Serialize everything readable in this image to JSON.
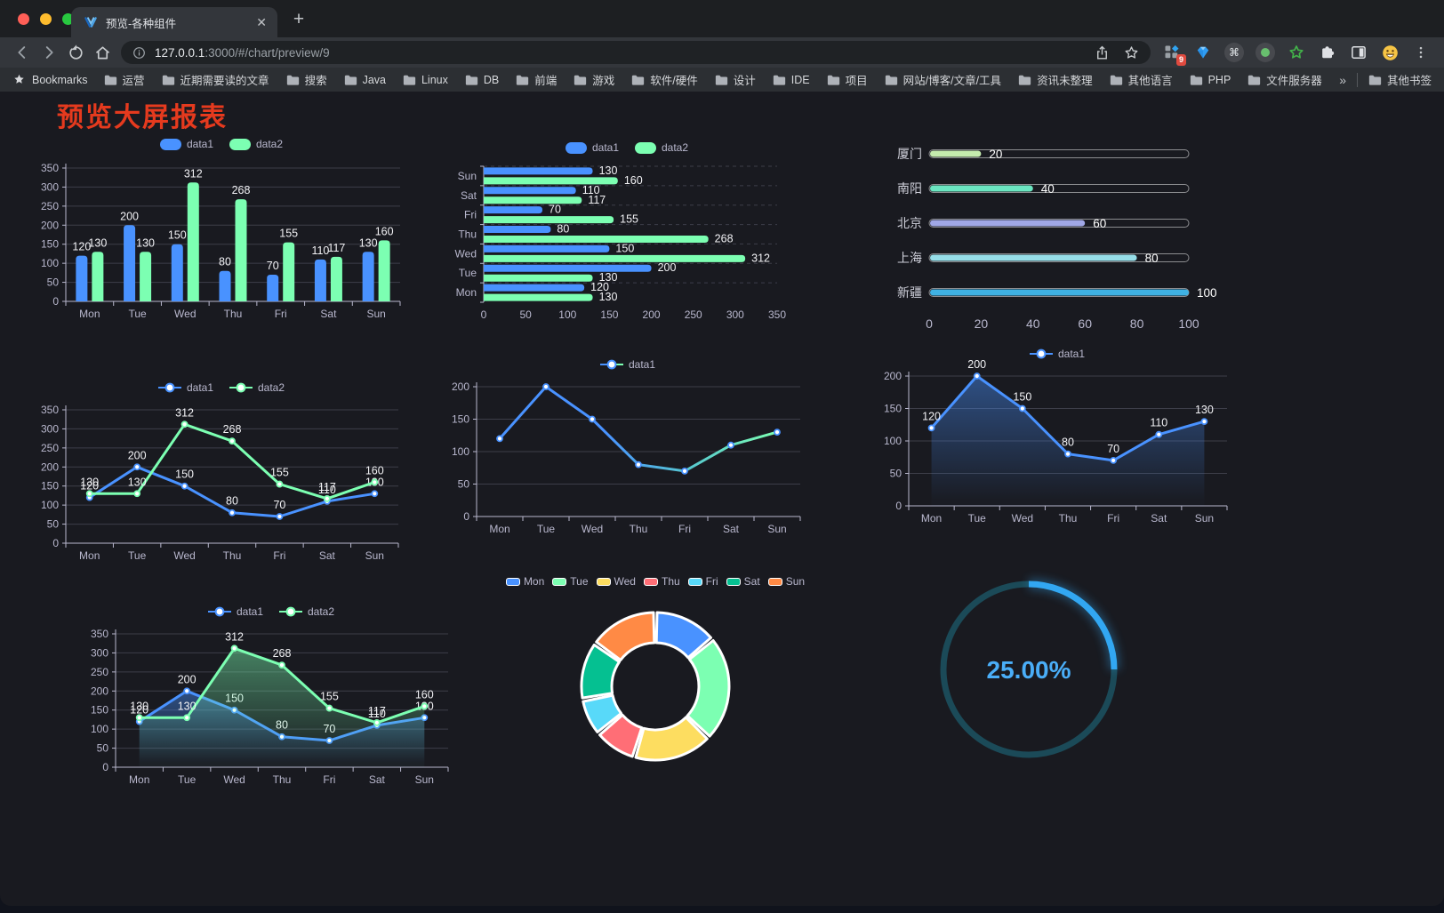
{
  "browser": {
    "tab_title": "预览-各种组件",
    "url_host": "127.0.0.1",
    "url_path": ":3000/#/chart/preview/9",
    "bookmarks_label": "Bookmarks",
    "bookmark_folders": [
      "运营",
      "近期需要读的文章",
      "搜索",
      "Java",
      "Linux",
      "DB",
      "前端",
      "游戏",
      "软件/硬件",
      "设计",
      "IDE",
      "项目",
      "网站/博客/文章/工具",
      "资讯未整理",
      "其他语言",
      "PHP",
      "文件服务器"
    ],
    "bookmarks_overflow": "»",
    "other_bookmarks_label": "其他书签",
    "extensions_badge": "9"
  },
  "page": {
    "title": "预览大屏报表",
    "title_color": "#e53a1e"
  },
  "chart_data": [
    {
      "id": "grouped-bar",
      "type": "bar",
      "legend_position": "top",
      "value_labels": true,
      "grid": true,
      "categories": [
        "Mon",
        "Tue",
        "Wed",
        "Thu",
        "Fri",
        "Sat",
        "Sun"
      ],
      "series": [
        {
          "name": "data1",
          "color": "#4992ff",
          "values": [
            120,
            200,
            150,
            80,
            70,
            110,
            130
          ]
        },
        {
          "name": "data2",
          "color": "#7cffb2",
          "values": [
            130,
            130,
            312,
            268,
            155,
            117,
            160
          ]
        }
      ],
      "ylim": [
        0,
        350
      ],
      "ytick_step": 50
    },
    {
      "id": "horizontal-grouped-bar",
      "type": "bar",
      "orientation": "horizontal",
      "legend_position": "top",
      "value_labels": true,
      "categories": [
        "Mon",
        "Tue",
        "Wed",
        "Thu",
        "Fri",
        "Sat",
        "Sun"
      ],
      "display_order_top_to_bottom": [
        "Sun",
        "Sat",
        "Fri",
        "Thu",
        "Wed",
        "Tue",
        "Mon"
      ],
      "series": [
        {
          "name": "data1",
          "color": "#4992ff",
          "values": [
            120,
            200,
            150,
            80,
            70,
            110,
            130
          ]
        },
        {
          "name": "data2",
          "color": "#7cffb2",
          "values": [
            130,
            130,
            312,
            268,
            155,
            117,
            160
          ]
        }
      ],
      "xlim": [
        0,
        350
      ],
      "xtick_step": 50
    },
    {
      "id": "progress-bars",
      "type": "bar",
      "orientation": "horizontal",
      "style": "progress",
      "value_labels": true,
      "categories": [
        "厦门",
        "南阳",
        "北京",
        "上海",
        "新疆"
      ],
      "values": [
        20,
        40,
        60,
        80,
        100
      ],
      "colors": [
        "#c4ebad",
        "#6be6c1",
        "#a0a7e6",
        "#96dee8",
        "#3fb1e3"
      ],
      "xlim": [
        0,
        100
      ],
      "xticks": [
        0,
        20,
        40,
        60,
        80,
        100
      ]
    },
    {
      "id": "two-series-line",
      "type": "line",
      "legend_position": "top",
      "markers": true,
      "value_labels": true,
      "categories": [
        "Mon",
        "Tue",
        "Wed",
        "Thu",
        "Fri",
        "Sat",
        "Sun"
      ],
      "series": [
        {
          "name": "data1",
          "color": "#4992ff",
          "values": [
            120,
            200,
            150,
            80,
            70,
            110,
            130
          ]
        },
        {
          "name": "data2",
          "color": "#7cffb2",
          "values": [
            130,
            130,
            312,
            268,
            155,
            117,
            160
          ]
        }
      ],
      "ylim": [
        0,
        350
      ],
      "ytick_step": 50
    },
    {
      "id": "gradient-line",
      "type": "line",
      "legend_position": "top",
      "markers": true,
      "value_labels": false,
      "categories": [
        "Mon",
        "Tue",
        "Wed",
        "Thu",
        "Fri",
        "Sat",
        "Sun"
      ],
      "series": [
        {
          "name": "data1",
          "color": "#4992ff",
          "color_gradient_to": "#7cffb2",
          "values": [
            120,
            200,
            150,
            80,
            70,
            110,
            130
          ]
        }
      ],
      "ylim": [
        0,
        200
      ],
      "ytick_step": 50
    },
    {
      "id": "area-line",
      "type": "area",
      "legend_position": "top",
      "markers": true,
      "value_labels": true,
      "categories": [
        "Mon",
        "Tue",
        "Wed",
        "Thu",
        "Fri",
        "Sat",
        "Sun"
      ],
      "series": [
        {
          "name": "data1",
          "color": "#4992ff",
          "values": [
            120,
            200,
            150,
            80,
            70,
            110,
            130
          ]
        }
      ],
      "ylim": [
        0,
        200
      ],
      "ytick_step": 50
    },
    {
      "id": "two-series-area-line",
      "type": "area",
      "legend_position": "top",
      "markers": true,
      "value_labels": true,
      "categories": [
        "Mon",
        "Tue",
        "Wed",
        "Thu",
        "Fri",
        "Sat",
        "Sun"
      ],
      "series": [
        {
          "name": "data1",
          "color": "#4992ff",
          "values": [
            120,
            200,
            150,
            80,
            70,
            110,
            130
          ]
        },
        {
          "name": "data2",
          "color": "#7cffb2",
          "values": [
            130,
            130,
            312,
            268,
            155,
            117,
            160
          ]
        }
      ],
      "ylim": [
        0,
        350
      ],
      "ytick_step": 50
    },
    {
      "id": "donut-pie",
      "type": "pie",
      "donut": true,
      "legend_position": "top",
      "categories": [
        "Mon",
        "Tue",
        "Wed",
        "Thu",
        "Fri",
        "Sat",
        "Sun"
      ],
      "values": [
        120,
        200,
        150,
        80,
        70,
        110,
        130
      ],
      "colors": [
        "#4992ff",
        "#7cffb2",
        "#fddd60",
        "#ff6e76",
        "#58d9f9",
        "#05c091",
        "#ff8a45"
      ]
    },
    {
      "id": "progress-gauge",
      "type": "gauge",
      "value": 25,
      "max": 100,
      "label": "25.00%",
      "arc_color": "#32a7f2",
      "track_color": "#1b4a58",
      "text_color": "#4aaef8"
    }
  ]
}
